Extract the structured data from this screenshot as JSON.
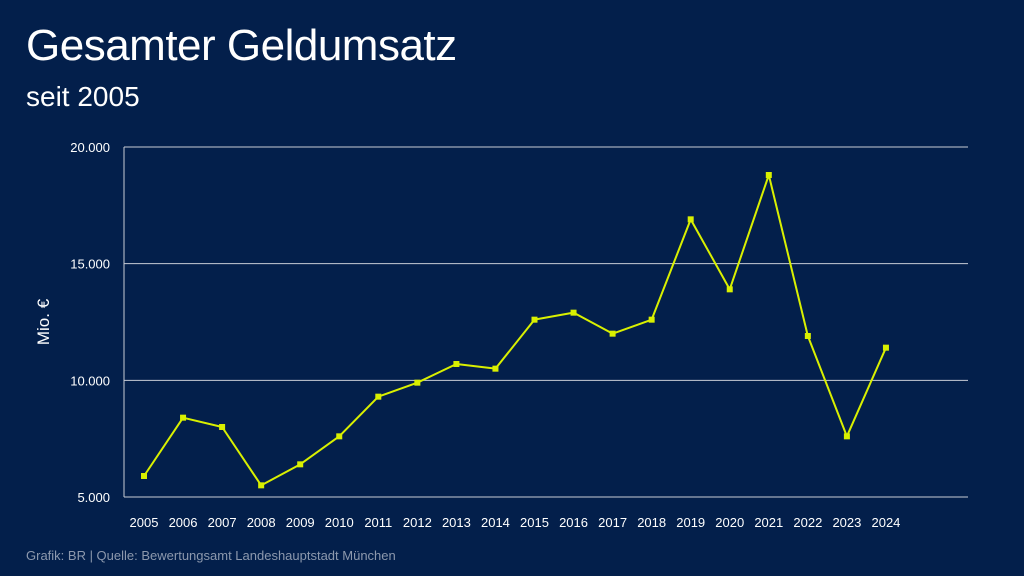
{
  "header": {
    "title": "Gesamter Geldumsatz",
    "subtitle": "seit 2005"
  },
  "footer": {
    "source": "Grafik: BR | Quelle: Bewertungsamt Landeshauptstadt München"
  },
  "colors": {
    "background": "#031f4b",
    "line": "#d9f000",
    "grid": "#c8ccd6"
  },
  "chart_data": {
    "type": "line",
    "title": "Gesamter Geldumsatz",
    "subtitle": "seit 2005",
    "xlabel": "",
    "ylabel": "Mio. €",
    "ylim": [
      5000,
      20000
    ],
    "yticks": [
      5000,
      10000,
      15000,
      20000
    ],
    "ytick_labels": [
      "5.000",
      "10.000",
      "15.000",
      "20.000"
    ],
    "grid": "horizontal",
    "x": [
      "2005",
      "2006",
      "2007",
      "2008",
      "2009",
      "2010",
      "2011",
      "2012",
      "2013",
      "2014",
      "2015",
      "2016",
      "2017",
      "2018",
      "2019",
      "2020",
      "2021",
      "2022",
      "2023",
      "2024"
    ],
    "series": [
      {
        "values": [
          5900,
          8400,
          8000,
          5500,
          6400,
          7600,
          9300,
          9900,
          10700,
          10500,
          12600,
          12900,
          12000,
          12600,
          16900,
          13900,
          18800,
          11900,
          7600,
          11400
        ]
      }
    ]
  }
}
